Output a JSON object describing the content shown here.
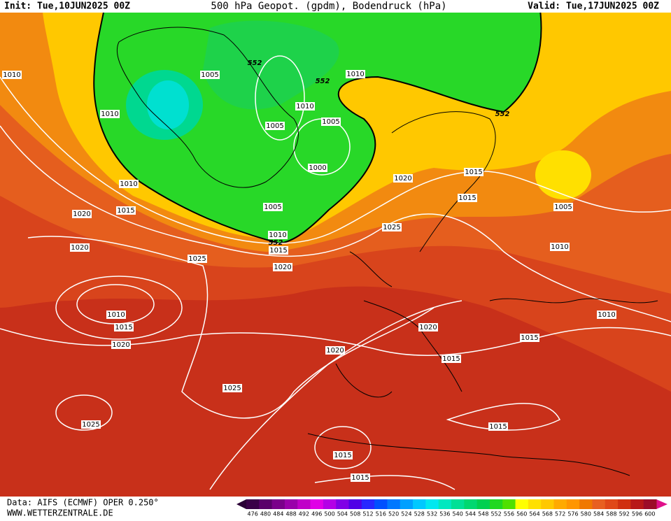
{
  "header": {
    "init": "Init: Tue,10JUN2025 00Z",
    "title": "500 hPa Geopot. (gpdm), Bodendruck (hPa)",
    "valid": "Valid: Tue,17JUN2025 00Z"
  },
  "footer": {
    "source": "Data: AIFS (ECMWF) OPER 0.250°",
    "site": "WWW.WETTERZENTRALE.DE"
  },
  "isobar_labels": [
    "1010",
    "1005",
    "552",
    "1010",
    "552",
    "1010",
    "1010",
    "1005",
    "552",
    "1005",
    "1000",
    "1010",
    "1020",
    "1015",
    "1015",
    "1005",
    "1020",
    "1015",
    "1005",
    "1025",
    "1010",
    "552",
    "1015",
    "1020",
    "1010",
    "1025",
    "1020",
    "1010",
    "1015",
    "1020",
    "1020",
    "1015",
    "1010",
    "1020",
    "1015",
    "1025",
    "1025",
    "1015",
    "1015",
    "1015"
  ],
  "colorbar": {
    "labels": [
      476,
      480,
      484,
      488,
      492,
      496,
      500,
      504,
      508,
      512,
      516,
      520,
      524,
      528,
      532,
      536,
      540,
      544,
      548,
      552,
      556,
      560,
      564,
      568,
      572,
      576,
      580,
      584,
      588,
      592,
      596,
      600
    ]
  }
}
